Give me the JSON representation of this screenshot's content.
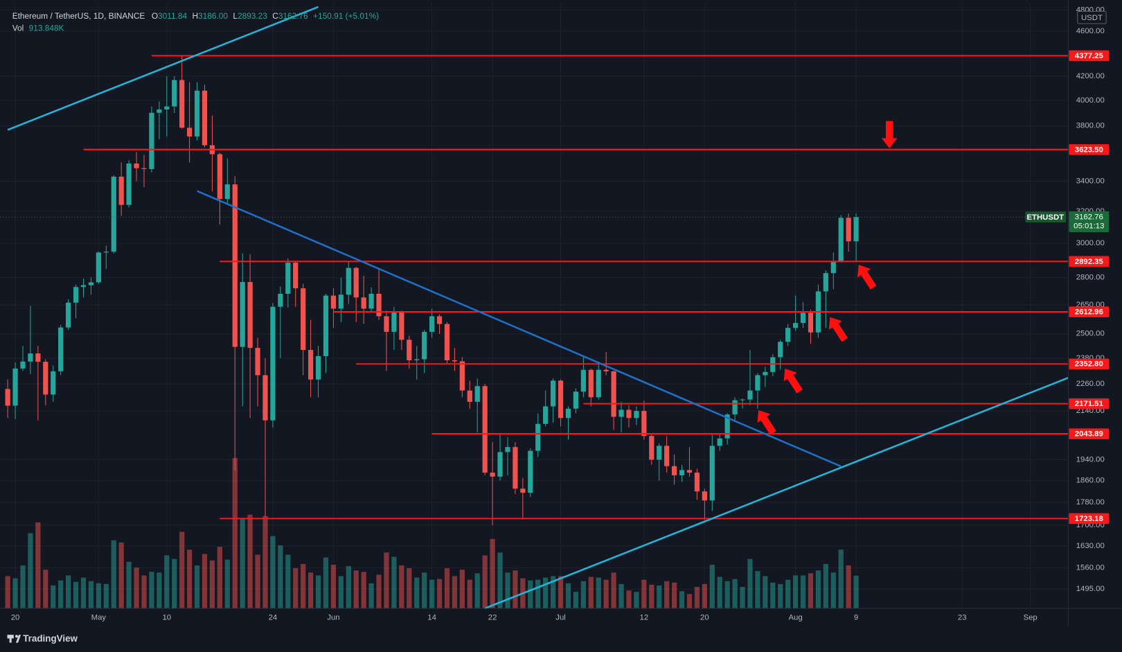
{
  "chart_data": {
    "type": "candlestick",
    "legend": {
      "title": "Ethereum / TetherUS, 1D, BINANCE",
      "items": [
        {
          "key": "O",
          "value": "3011.84"
        },
        {
          "key": "H",
          "value": "3186.00"
        },
        {
          "key": "L",
          "value": "2893.23"
        },
        {
          "key": "C",
          "value": "3162.76"
        }
      ],
      "change": "+150.91 (+5.01%)",
      "volume_key": "Vol",
      "volume_value": "913.848K"
    },
    "currency": "USDT",
    "footer": "TradingView",
    "log": true,
    "grid": true,
    "up_color": "#26a69a",
    "down_color": "#ef5350",
    "level_color": "#f21a1a",
    "xlim": [
      "04-18",
      "09-06"
    ],
    "ylim": [
      1438,
      4862
    ],
    "xticks": [
      {
        "value": "04-20",
        "label": "20"
      },
      {
        "value": "05-01",
        "label": "May"
      },
      {
        "value": "05-10",
        "label": "10"
      },
      {
        "value": "05-24",
        "label": "24"
      },
      {
        "value": "06-01",
        "label": "Jun"
      },
      {
        "value": "06-14",
        "label": "14"
      },
      {
        "value": "06-22",
        "label": "22"
      },
      {
        "value": "07-01",
        "label": "Jul"
      },
      {
        "value": "07-12",
        "label": "12"
      },
      {
        "value": "07-20",
        "label": "20"
      },
      {
        "value": "08-01",
        "label": "Aug"
      },
      {
        "value": "08-09",
        "label": "9"
      },
      {
        "value": "08-23",
        "label": "23"
      },
      {
        "value": "09-01",
        "label": "Sep"
      }
    ],
    "yticks": [
      {
        "value": 4800,
        "label": "4800.00"
      },
      {
        "value": 4600,
        "label": "4600.00"
      },
      {
        "value": 4200,
        "label": "4200.00"
      },
      {
        "value": 4000,
        "label": "4000.00"
      },
      {
        "value": 3800,
        "label": "3800.00"
      },
      {
        "value": 3400,
        "label": "3400.00"
      },
      {
        "value": 3200,
        "label": "3200.00"
      },
      {
        "value": 3000,
        "label": "3000.00"
      },
      {
        "value": 2800,
        "label": "2800.00"
      },
      {
        "value": 2650,
        "label": "2650.00"
      },
      {
        "value": 2500,
        "label": "2500.00"
      },
      {
        "value": 2380,
        "label": "2380.00"
      },
      {
        "value": 2260,
        "label": "2260.00"
      },
      {
        "value": 2140,
        "label": "2140.00"
      },
      {
        "value": 1940,
        "label": "1940.00"
      },
      {
        "value": 1860,
        "label": "1860.00"
      },
      {
        "value": 1780,
        "label": "1780.00"
      },
      {
        "value": 1700,
        "label": "1700.00"
      },
      {
        "value": 1630,
        "label": "1630.00"
      },
      {
        "value": 1560,
        "label": "1560.00"
      },
      {
        "value": 1495,
        "label": "1495.00"
      }
    ],
    "x": [
      "04-19",
      "04-20",
      "04-21",
      "04-22",
      "04-23",
      "04-24",
      "04-25",
      "04-26",
      "04-27",
      "04-28",
      "04-29",
      "04-30",
      "05-01",
      "05-02",
      "05-03",
      "05-04",
      "05-05",
      "05-06",
      "05-07",
      "05-08",
      "05-09",
      "05-10",
      "05-11",
      "05-12",
      "05-13",
      "05-14",
      "05-15",
      "05-16",
      "05-17",
      "05-18",
      "05-19",
      "05-20",
      "05-21",
      "05-22",
      "05-23",
      "05-24",
      "05-25",
      "05-26",
      "05-27",
      "05-28",
      "05-29",
      "05-30",
      "05-31",
      "06-01",
      "06-02",
      "06-03",
      "06-04",
      "06-05",
      "06-06",
      "06-07",
      "06-08",
      "06-09",
      "06-10",
      "06-11",
      "06-12",
      "06-13",
      "06-14",
      "06-15",
      "06-16",
      "06-17",
      "06-18",
      "06-19",
      "06-20",
      "06-21",
      "06-22",
      "06-23",
      "06-24",
      "06-25",
      "06-26",
      "06-27",
      "06-28",
      "06-29",
      "06-30",
      "07-01",
      "07-02",
      "07-03",
      "07-04",
      "07-05",
      "07-06",
      "07-07",
      "07-08",
      "07-09",
      "07-10",
      "07-11",
      "07-12",
      "07-13",
      "07-14",
      "07-15",
      "07-16",
      "07-17",
      "07-18",
      "07-19",
      "07-20",
      "07-21",
      "07-22",
      "07-23",
      "07-24",
      "07-25",
      "07-26",
      "07-27",
      "07-28",
      "07-29",
      "07-30",
      "07-31",
      "08-01",
      "08-02",
      "08-03",
      "08-04",
      "08-05",
      "08-06",
      "08-07",
      "08-08",
      "08-09"
    ],
    "open": [
      2237,
      2163,
      2331,
      2364,
      2403,
      2363,
      2212,
      2318,
      2532,
      2662,
      2747,
      2757,
      2773,
      2945,
      2950,
      3431,
      3241,
      3523,
      3490,
      3484,
      3902,
      3928,
      3952,
      4168,
      3786,
      3720,
      4080,
      3655,
      3590,
      3280,
      3378,
      2435,
      2775,
      2430,
      2300,
      2100,
      2640,
      2710,
      2885,
      2740,
      2420,
      2280,
      2390,
      2700,
      2630,
      2705,
      2855,
      2690,
      2630,
      2710,
      2590,
      2510,
      2610,
      2470,
      2370,
      2375,
      2510,
      2590,
      2550,
      2370,
      2365,
      2230,
      2180,
      2250,
      1890,
      1875,
      1970,
      1990,
      1830,
      1815,
      1975,
      2085,
      2160,
      2275,
      2110,
      2150,
      2225,
      2325,
      2200,
      2325,
      2318,
      2115,
      2145,
      2110,
      2140,
      2035,
      1940,
      1995,
      1915,
      1880,
      1900,
      1890,
      1820,
      1787,
      1995,
      2025,
      2125,
      2187,
      2190,
      2230,
      2300,
      2315,
      2385,
      2460,
      2530,
      2555,
      2608,
      2507,
      2723,
      2825,
      2890,
      3158,
      3011.84
    ],
    "high": [
      2280,
      2360,
      2440,
      2645,
      2440,
      2375,
      2345,
      2545,
      2680,
      2760,
      2795,
      2800,
      2950,
      2985,
      3440,
      3530,
      3545,
      3605,
      3585,
      3950,
      3990,
      4200,
      4200,
      4372,
      4150,
      4150,
      4130,
      3880,
      3600,
      3560,
      3435,
      2940,
      2935,
      2480,
      2380,
      2660,
      2750,
      2910,
      2890,
      2765,
      2570,
      2440,
      2710,
      2740,
      2800,
      2890,
      2860,
      2810,
      2745,
      2850,
      2620,
      2640,
      2620,
      2490,
      2440,
      2520,
      2630,
      2600,
      2560,
      2430,
      2385,
      2275,
      2285,
      2260,
      2010,
      2045,
      2030,
      2010,
      1870,
      1985,
      2130,
      2230,
      2285,
      2280,
      2160,
      2240,
      2390,
      2330,
      2350,
      2410,
      2320,
      2180,
      2165,
      2160,
      2185,
      2045,
      2005,
      2035,
      1960,
      1920,
      1990,
      1905,
      1830,
      2045,
      2045,
      2130,
      2200,
      2195,
      2420,
      2310,
      2340,
      2400,
      2470,
      2550,
      2700,
      2665,
      2625,
      2760,
      2840,
      2945,
      3175,
      3185,
      3186
    ],
    "low": [
      2110,
      2105,
      2320,
      2305,
      2100,
      2165,
      2180,
      2300,
      2520,
      2580,
      2690,
      2705,
      2765,
      2850,
      2940,
      3170,
      3225,
      3400,
      3360,
      3460,
      3700,
      3720,
      3900,
      3780,
      3530,
      3690,
      3640,
      3330,
      3115,
      3250,
      1900,
      2160,
      2110,
      2160,
      1728,
      2070,
      2380,
      2635,
      2640,
      2300,
      2200,
      2200,
      2310,
      2530,
      2560,
      2655,
      2560,
      2550,
      2615,
      2570,
      2320,
      2420,
      2420,
      2330,
      2280,
      2310,
      2480,
      2500,
      2350,
      2320,
      2200,
      2150,
      2050,
      1880,
      1700,
      1860,
      1880,
      1810,
      1720,
      1800,
      1950,
      2075,
      2090,
      2075,
      2020,
      2130,
      2200,
      2160,
      2190,
      2300,
      2060,
      2050,
      2070,
      2080,
      2020,
      1920,
      1860,
      1890,
      1845,
      1855,
      1875,
      1790,
      1718,
      1750,
      1975,
      2000,
      2100,
      2150,
      2165,
      2150,
      2245,
      2295,
      2325,
      2440,
      2515,
      2530,
      2450,
      2480,
      2530,
      2735,
      2885,
      2950,
      2893.23
    ],
    "close": [
      2163,
      2331,
      2364,
      2403,
      2363,
      2212,
      2318,
      2532,
      2662,
      2747,
      2757,
      2773,
      2945,
      2950,
      3431,
      3241,
      3523,
      3490,
      3484,
      3902,
      3928,
      3952,
      4168,
      3786,
      3720,
      4080,
      3655,
      3590,
      3280,
      3378,
      2435,
      2775,
      2430,
      2300,
      2100,
      2640,
      2710,
      2885,
      2740,
      2420,
      2280,
      2390,
      2700,
      2630,
      2705,
      2855,
      2690,
      2630,
      2710,
      2590,
      2510,
      2610,
      2470,
      2370,
      2375,
      2510,
      2590,
      2550,
      2370,
      2365,
      2230,
      2180,
      2250,
      1890,
      1875,
      1970,
      1990,
      1830,
      1815,
      1975,
      2085,
      2160,
      2275,
      2110,
      2150,
      2225,
      2325,
      2200,
      2325,
      2318,
      2115,
      2145,
      2110,
      2140,
      2035,
      1940,
      1995,
      1915,
      1880,
      1900,
      1890,
      1820,
      1787,
      1995,
      2025,
      2125,
      2187,
      2190,
      2230,
      2300,
      2315,
      2385,
      2460,
      2530,
      2555,
      2608,
      2507,
      2723,
      2825,
      2890,
      3158,
      3011.84,
      3162.76
    ],
    "volume": [
      900000,
      840000,
      1200000,
      2100000,
      2400000,
      1080000,
      640000,
      780000,
      920000,
      740000,
      860000,
      760000,
      700000,
      680000,
      1900000,
      1840000,
      1300000,
      1140000,
      920000,
      1020000,
      1000000,
      1480000,
      1380000,
      2140000,
      1640000,
      1200000,
      1520000,
      1340000,
      1720000,
      1360000,
      4200000,
      2520000,
      2620000,
      1500000,
      2580000,
      2020000,
      1760000,
      1500000,
      1120000,
      1240000,
      1000000,
      920000,
      1420000,
      1220000,
      900000,
      1180000,
      1060000,
      1020000,
      700000,
      940000,
      1560000,
      1440000,
      1200000,
      1120000,
      860000,
      1000000,
      800000,
      820000,
      1120000,
      900000,
      1080000,
      800000,
      980000,
      1480000,
      1940000,
      1560000,
      1000000,
      1060000,
      840000,
      780000,
      800000,
      860000,
      900000,
      900000,
      700000,
      460000,
      760000,
      880000,
      860000,
      800000,
      1000000,
      680000,
      500000,
      460000,
      800000,
      660000,
      640000,
      760000,
      720000,
      480000,
      400000,
      600000,
      680000,
      1220000,
      880000,
      760000,
      820000,
      600000,
      1380000,
      1040000,
      900000,
      720000,
      680000,
      800000,
      920000,
      920000,
      980000,
      1060000,
      1240000,
      1000000,
      1640000,
      1200000,
      913848
    ],
    "levels": [
      {
        "value": 4377.25,
        "label": "4377.25",
        "from": "05-08"
      },
      {
        "value": 3623.5,
        "label": "3623.50",
        "from": "04-29"
      },
      {
        "value": 2892.35,
        "label": "2892.35",
        "from": "05-17"
      },
      {
        "value": 2612.96,
        "label": "2612.96",
        "from": "06-01"
      },
      {
        "value": 2352.8,
        "label": "2352.80",
        "from": "06-04"
      },
      {
        "value": 2171.51,
        "label": "2171.51",
        "from": "07-04"
      },
      {
        "value": 2043.89,
        "label": "2043.89",
        "from": "06-14"
      },
      {
        "value": 1723.18,
        "label": "1723.18",
        "from": "05-17"
      }
    ],
    "trendlines": [
      {
        "color": "#22b5d8",
        "points": [
          [
            "04-19",
            3770
          ],
          [
            "05-30",
            4830
          ]
        ]
      },
      {
        "color": "#1f6fc4",
        "points": [
          [
            "05-14",
            3333
          ],
          [
            "08-07",
            1914
          ]
        ]
      },
      {
        "color": "#22b5d8",
        "points": [
          [
            "06-21",
            1438
          ],
          [
            "09-06",
            2288
          ]
        ]
      }
    ],
    "last": {
      "symbol": "ETHUSDT",
      "price": 3162.76,
      "countdown": "05:01:13"
    }
  }
}
